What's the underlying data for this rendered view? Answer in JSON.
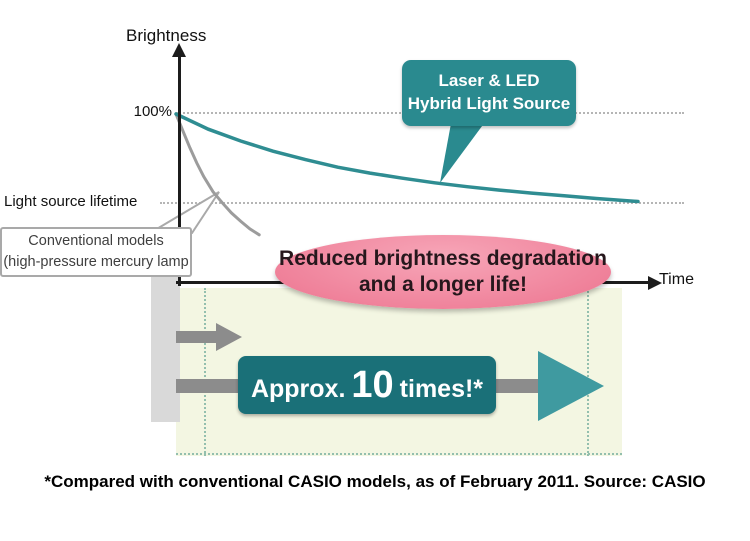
{
  "labels": {
    "brightness": "Brightness",
    "y100": "100%",
    "lifetime": "Light source lifetime",
    "time": "Time"
  },
  "callouts": {
    "hybrid": {
      "line1": "Laser & LED",
      "line2": "Hybrid Light Source"
    },
    "conventional": {
      "line1": "Conventional models",
      "line2": "(high-pressure mercury lamp"
    },
    "benefit": {
      "line1": "Reduced brightness degradation",
      "line2": "and a longer life!"
    }
  },
  "comparison": {
    "approx": "Approx.",
    "number": "10",
    "suffix": "times!*"
  },
  "footnote": "*Compared with conventional CASIO models, as of February 2011. Source: CASIO",
  "colors": {
    "teal": "#2a8a8f",
    "dark_teal": "#1a7078",
    "arrowhead_teal": "#3f9aa0",
    "pink": "#ef8099",
    "gray_arrow": "#8c8c8c",
    "pale_region": "#f3f6e2"
  },
  "chart_data": {
    "type": "line",
    "xlabel": "Time",
    "ylabel": "Brightness",
    "y_unit": "%",
    "ylim": [
      0,
      110
    ],
    "grid": "off",
    "legend_position": "callouts",
    "reference_lines": [
      {
        "label": "100%",
        "y": 100
      },
      {
        "label": "Light source lifetime",
        "y": 46
      }
    ],
    "series": [
      {
        "name": "Laser & LED Hybrid Light Source",
        "color": "#2f8d92",
        "points": [
          [
            0,
            100
          ],
          [
            7,
            91
          ],
          [
            14,
            84
          ],
          [
            21,
            78
          ],
          [
            28,
            73
          ],
          [
            35,
            68.5
          ],
          [
            42,
            65
          ],
          [
            49,
            62
          ],
          [
            56,
            59.3
          ],
          [
            63,
            57
          ],
          [
            70,
            55
          ],
          [
            77,
            53.2
          ],
          [
            84,
            51.6
          ],
          [
            91,
            50
          ],
          [
            98,
            48.6
          ],
          [
            100,
            48.2
          ]
        ]
      },
      {
        "name": "Conventional models (high-pressure mercury lamp)",
        "color": "#9c9c9c",
        "points": [
          [
            0,
            100
          ],
          [
            1.5,
            90
          ],
          [
            3,
            80
          ],
          [
            4.5,
            71
          ],
          [
            6,
            63
          ],
          [
            8,
            54
          ],
          [
            10,
            47.5
          ],
          [
            12,
            41.5
          ],
          [
            14,
            36.5
          ],
          [
            16,
            32
          ],
          [
            18,
            28.5
          ]
        ]
      }
    ],
    "annotations": [
      "Reduced brightness degradation and a longer life!",
      "Approx. 10 times!*"
    ]
  }
}
